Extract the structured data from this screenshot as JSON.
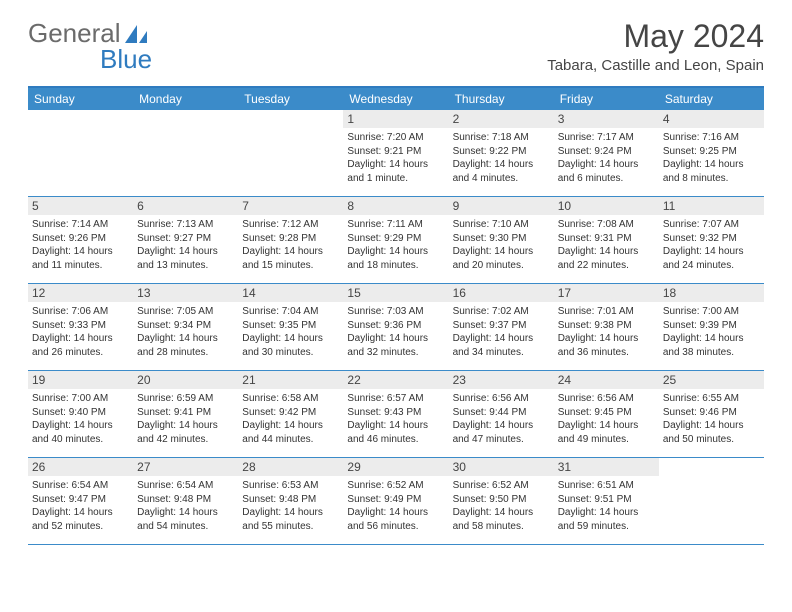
{
  "logo": {
    "word1": "General",
    "word2": "Blue"
  },
  "header": {
    "title": "May 2024",
    "location": "Tabara, Castille and Leon, Spain"
  },
  "colors": {
    "accent": "#3b8bc9",
    "border_top": "#2f7bbf",
    "daynum_bg": "#ececec",
    "text": "#454545"
  },
  "day_names": [
    "Sunday",
    "Monday",
    "Tuesday",
    "Wednesday",
    "Thursday",
    "Friday",
    "Saturday"
  ],
  "weeks": [
    [
      null,
      null,
      null,
      {
        "n": "1",
        "sr": "Sunrise: 7:20 AM",
        "ss": "Sunset: 9:21 PM",
        "dl": "Daylight: 14 hours and 1 minute."
      },
      {
        "n": "2",
        "sr": "Sunrise: 7:18 AM",
        "ss": "Sunset: 9:22 PM",
        "dl": "Daylight: 14 hours and 4 minutes."
      },
      {
        "n": "3",
        "sr": "Sunrise: 7:17 AM",
        "ss": "Sunset: 9:24 PM",
        "dl": "Daylight: 14 hours and 6 minutes."
      },
      {
        "n": "4",
        "sr": "Sunrise: 7:16 AM",
        "ss": "Sunset: 9:25 PM",
        "dl": "Daylight: 14 hours and 8 minutes."
      }
    ],
    [
      {
        "n": "5",
        "sr": "Sunrise: 7:14 AM",
        "ss": "Sunset: 9:26 PM",
        "dl": "Daylight: 14 hours and 11 minutes."
      },
      {
        "n": "6",
        "sr": "Sunrise: 7:13 AM",
        "ss": "Sunset: 9:27 PM",
        "dl": "Daylight: 14 hours and 13 minutes."
      },
      {
        "n": "7",
        "sr": "Sunrise: 7:12 AM",
        "ss": "Sunset: 9:28 PM",
        "dl": "Daylight: 14 hours and 15 minutes."
      },
      {
        "n": "8",
        "sr": "Sunrise: 7:11 AM",
        "ss": "Sunset: 9:29 PM",
        "dl": "Daylight: 14 hours and 18 minutes."
      },
      {
        "n": "9",
        "sr": "Sunrise: 7:10 AM",
        "ss": "Sunset: 9:30 PM",
        "dl": "Daylight: 14 hours and 20 minutes."
      },
      {
        "n": "10",
        "sr": "Sunrise: 7:08 AM",
        "ss": "Sunset: 9:31 PM",
        "dl": "Daylight: 14 hours and 22 minutes."
      },
      {
        "n": "11",
        "sr": "Sunrise: 7:07 AM",
        "ss": "Sunset: 9:32 PM",
        "dl": "Daylight: 14 hours and 24 minutes."
      }
    ],
    [
      {
        "n": "12",
        "sr": "Sunrise: 7:06 AM",
        "ss": "Sunset: 9:33 PM",
        "dl": "Daylight: 14 hours and 26 minutes."
      },
      {
        "n": "13",
        "sr": "Sunrise: 7:05 AM",
        "ss": "Sunset: 9:34 PM",
        "dl": "Daylight: 14 hours and 28 minutes."
      },
      {
        "n": "14",
        "sr": "Sunrise: 7:04 AM",
        "ss": "Sunset: 9:35 PM",
        "dl": "Daylight: 14 hours and 30 minutes."
      },
      {
        "n": "15",
        "sr": "Sunrise: 7:03 AM",
        "ss": "Sunset: 9:36 PM",
        "dl": "Daylight: 14 hours and 32 minutes."
      },
      {
        "n": "16",
        "sr": "Sunrise: 7:02 AM",
        "ss": "Sunset: 9:37 PM",
        "dl": "Daylight: 14 hours and 34 minutes."
      },
      {
        "n": "17",
        "sr": "Sunrise: 7:01 AM",
        "ss": "Sunset: 9:38 PM",
        "dl": "Daylight: 14 hours and 36 minutes."
      },
      {
        "n": "18",
        "sr": "Sunrise: 7:00 AM",
        "ss": "Sunset: 9:39 PM",
        "dl": "Daylight: 14 hours and 38 minutes."
      }
    ],
    [
      {
        "n": "19",
        "sr": "Sunrise: 7:00 AM",
        "ss": "Sunset: 9:40 PM",
        "dl": "Daylight: 14 hours and 40 minutes."
      },
      {
        "n": "20",
        "sr": "Sunrise: 6:59 AM",
        "ss": "Sunset: 9:41 PM",
        "dl": "Daylight: 14 hours and 42 minutes."
      },
      {
        "n": "21",
        "sr": "Sunrise: 6:58 AM",
        "ss": "Sunset: 9:42 PM",
        "dl": "Daylight: 14 hours and 44 minutes."
      },
      {
        "n": "22",
        "sr": "Sunrise: 6:57 AM",
        "ss": "Sunset: 9:43 PM",
        "dl": "Daylight: 14 hours and 46 minutes."
      },
      {
        "n": "23",
        "sr": "Sunrise: 6:56 AM",
        "ss": "Sunset: 9:44 PM",
        "dl": "Daylight: 14 hours and 47 minutes."
      },
      {
        "n": "24",
        "sr": "Sunrise: 6:56 AM",
        "ss": "Sunset: 9:45 PM",
        "dl": "Daylight: 14 hours and 49 minutes."
      },
      {
        "n": "25",
        "sr": "Sunrise: 6:55 AM",
        "ss": "Sunset: 9:46 PM",
        "dl": "Daylight: 14 hours and 50 minutes."
      }
    ],
    [
      {
        "n": "26",
        "sr": "Sunrise: 6:54 AM",
        "ss": "Sunset: 9:47 PM",
        "dl": "Daylight: 14 hours and 52 minutes."
      },
      {
        "n": "27",
        "sr": "Sunrise: 6:54 AM",
        "ss": "Sunset: 9:48 PM",
        "dl": "Daylight: 14 hours and 54 minutes."
      },
      {
        "n": "28",
        "sr": "Sunrise: 6:53 AM",
        "ss": "Sunset: 9:48 PM",
        "dl": "Daylight: 14 hours and 55 minutes."
      },
      {
        "n": "29",
        "sr": "Sunrise: 6:52 AM",
        "ss": "Sunset: 9:49 PM",
        "dl": "Daylight: 14 hours and 56 minutes."
      },
      {
        "n": "30",
        "sr": "Sunrise: 6:52 AM",
        "ss": "Sunset: 9:50 PM",
        "dl": "Daylight: 14 hours and 58 minutes."
      },
      {
        "n": "31",
        "sr": "Sunrise: 6:51 AM",
        "ss": "Sunset: 9:51 PM",
        "dl": "Daylight: 14 hours and 59 minutes."
      },
      null
    ]
  ]
}
